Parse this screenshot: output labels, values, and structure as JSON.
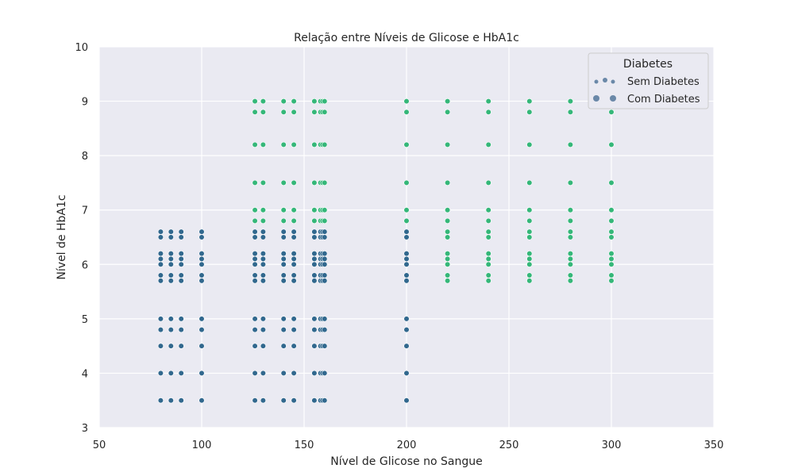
{
  "chart_data": {
    "type": "scatter",
    "title": "Relação entre Níveis de Glicose e HbA1c",
    "xlabel": "Nível de Glicose no Sangue",
    "ylabel": "Nível de HbA1c",
    "xlim": [
      50,
      350
    ],
    "ylim": [
      3,
      10
    ],
    "xticks": [
      50,
      100,
      150,
      200,
      250,
      300,
      350
    ],
    "yticks": [
      3,
      4,
      5,
      6,
      7,
      8,
      9,
      10
    ],
    "grid": true,
    "legend": {
      "title": "Diabetes",
      "placement": "top-right",
      "entries": [
        "Sem Diabetes",
        "Com Diabetes"
      ]
    },
    "colors": {
      "plot_background": "#eaeaf2",
      "grid": "#ffffff",
      "sem_diabetes": "#31688e",
      "com_diabetes": "#35b779",
      "legend_marker": "#6a88a8"
    },
    "series": [
      {
        "name": "Sem Diabetes",
        "points": [
          [
            80,
            3.5
          ],
          [
            80,
            4.0
          ],
          [
            80,
            4.5
          ],
          [
            80,
            4.8
          ],
          [
            80,
            5.0
          ],
          [
            80,
            5.7
          ],
          [
            80,
            5.8
          ],
          [
            80,
            6.0
          ],
          [
            80,
            6.1
          ],
          [
            80,
            6.2
          ],
          [
            80,
            6.5
          ],
          [
            80,
            6.6
          ],
          [
            85,
            3.5
          ],
          [
            85,
            4.0
          ],
          [
            85,
            4.5
          ],
          [
            85,
            4.8
          ],
          [
            85,
            5.0
          ],
          [
            85,
            5.7
          ],
          [
            85,
            5.8
          ],
          [
            85,
            6.0
          ],
          [
            85,
            6.1
          ],
          [
            85,
            6.2
          ],
          [
            85,
            6.5
          ],
          [
            85,
            6.6
          ],
          [
            90,
            3.5
          ],
          [
            90,
            4.0
          ],
          [
            90,
            4.5
          ],
          [
            90,
            4.8
          ],
          [
            90,
            5.0
          ],
          [
            90,
            5.7
          ],
          [
            90,
            5.8
          ],
          [
            90,
            6.0
          ],
          [
            90,
            6.1
          ],
          [
            90,
            6.2
          ],
          [
            90,
            6.5
          ],
          [
            90,
            6.6
          ],
          [
            100,
            3.5
          ],
          [
            100,
            4.0
          ],
          [
            100,
            4.5
          ],
          [
            100,
            4.8
          ],
          [
            100,
            5.0
          ],
          [
            100,
            5.7
          ],
          [
            100,
            5.8
          ],
          [
            100,
            6.0
          ],
          [
            100,
            6.1
          ],
          [
            100,
            6.2
          ],
          [
            100,
            6.5
          ],
          [
            100,
            6.6
          ],
          [
            126,
            3.5
          ],
          [
            126,
            4.0
          ],
          [
            126,
            4.5
          ],
          [
            126,
            4.8
          ],
          [
            126,
            5.0
          ],
          [
            126,
            5.7
          ],
          [
            126,
            5.8
          ],
          [
            126,
            6.0
          ],
          [
            126,
            6.1
          ],
          [
            126,
            6.2
          ],
          [
            126,
            6.5
          ],
          [
            126,
            6.6
          ],
          [
            130,
            3.5
          ],
          [
            130,
            4.0
          ],
          [
            130,
            4.5
          ],
          [
            130,
            4.8
          ],
          [
            130,
            5.0
          ],
          [
            130,
            5.7
          ],
          [
            130,
            5.8
          ],
          [
            130,
            6.0
          ],
          [
            130,
            6.1
          ],
          [
            130,
            6.2
          ],
          [
            130,
            6.5
          ],
          [
            130,
            6.6
          ],
          [
            140,
            3.5
          ],
          [
            140,
            4.0
          ],
          [
            140,
            4.5
          ],
          [
            140,
            4.8
          ],
          [
            140,
            5.0
          ],
          [
            140,
            5.7
          ],
          [
            140,
            5.8
          ],
          [
            140,
            6.0
          ],
          [
            140,
            6.1
          ],
          [
            140,
            6.2
          ],
          [
            140,
            6.5
          ],
          [
            140,
            6.6
          ],
          [
            145,
            3.5
          ],
          [
            145,
            4.0
          ],
          [
            145,
            4.5
          ],
          [
            145,
            4.8
          ],
          [
            145,
            5.0
          ],
          [
            145,
            5.7
          ],
          [
            145,
            5.8
          ],
          [
            145,
            6.0
          ],
          [
            145,
            6.1
          ],
          [
            145,
            6.2
          ],
          [
            145,
            6.5
          ],
          [
            145,
            6.6
          ],
          [
            155,
            3.5
          ],
          [
            155,
            4.0
          ],
          [
            155,
            4.5
          ],
          [
            155,
            4.8
          ],
          [
            155,
            5.0
          ],
          [
            155,
            5.7
          ],
          [
            155,
            5.8
          ],
          [
            155,
            6.0
          ],
          [
            155,
            6.1
          ],
          [
            155,
            6.2
          ],
          [
            155,
            6.5
          ],
          [
            155,
            6.6
          ],
          [
            158,
            3.5
          ],
          [
            158,
            4.0
          ],
          [
            158,
            4.5
          ],
          [
            158,
            4.8
          ],
          [
            158,
            5.0
          ],
          [
            158,
            5.7
          ],
          [
            158,
            5.8
          ],
          [
            158,
            6.0
          ],
          [
            158,
            6.1
          ],
          [
            158,
            6.2
          ],
          [
            158,
            6.5
          ],
          [
            158,
            6.6
          ],
          [
            159,
            3.5
          ],
          [
            159,
            4.0
          ],
          [
            159,
            4.5
          ],
          [
            159,
            4.8
          ],
          [
            159,
            5.0
          ],
          [
            159,
            5.7
          ],
          [
            159,
            5.8
          ],
          [
            159,
            6.0
          ],
          [
            159,
            6.1
          ],
          [
            159,
            6.2
          ],
          [
            159,
            6.5
          ],
          [
            159,
            6.6
          ],
          [
            160,
            3.5
          ],
          [
            160,
            4.0
          ],
          [
            160,
            4.5
          ],
          [
            160,
            4.8
          ],
          [
            160,
            5.0
          ],
          [
            160,
            5.7
          ],
          [
            160,
            5.8
          ],
          [
            160,
            6.0
          ],
          [
            160,
            6.1
          ],
          [
            160,
            6.2
          ],
          [
            160,
            6.5
          ],
          [
            160,
            6.6
          ],
          [
            200,
            3.5
          ],
          [
            200,
            4.0
          ],
          [
            200,
            4.5
          ],
          [
            200,
            4.8
          ],
          [
            200,
            5.0
          ],
          [
            200,
            5.7
          ],
          [
            200,
            5.8
          ],
          [
            200,
            6.0
          ],
          [
            200,
            6.1
          ],
          [
            200,
            6.2
          ],
          [
            200,
            6.5
          ],
          [
            200,
            6.6
          ]
        ]
      },
      {
        "name": "Com Diabetes",
        "points": [
          [
            126,
            6.8
          ],
          [
            126,
            7.0
          ],
          [
            126,
            7.5
          ],
          [
            126,
            8.2
          ],
          [
            126,
            8.8
          ],
          [
            126,
            9.0
          ],
          [
            130,
            6.8
          ],
          [
            130,
            7.0
          ],
          [
            130,
            7.5
          ],
          [
            130,
            8.2
          ],
          [
            130,
            8.8
          ],
          [
            130,
            9.0
          ],
          [
            140,
            6.8
          ],
          [
            140,
            7.0
          ],
          [
            140,
            7.5
          ],
          [
            140,
            8.2
          ],
          [
            140,
            8.8
          ],
          [
            140,
            9.0
          ],
          [
            145,
            6.8
          ],
          [
            145,
            7.0
          ],
          [
            145,
            7.5
          ],
          [
            145,
            8.2
          ],
          [
            145,
            8.8
          ],
          [
            145,
            9.0
          ],
          [
            155,
            6.8
          ],
          [
            155,
            7.0
          ],
          [
            155,
            7.5
          ],
          [
            155,
            8.2
          ],
          [
            155,
            8.8
          ],
          [
            155,
            9.0
          ],
          [
            158,
            6.8
          ],
          [
            158,
            7.0
          ],
          [
            158,
            7.5
          ],
          [
            158,
            8.2
          ],
          [
            158,
            8.8
          ],
          [
            158,
            9.0
          ],
          [
            159,
            6.8
          ],
          [
            159,
            7.0
          ],
          [
            159,
            7.5
          ],
          [
            159,
            8.2
          ],
          [
            159,
            8.8
          ],
          [
            159,
            9.0
          ],
          [
            160,
            6.8
          ],
          [
            160,
            7.0
          ],
          [
            160,
            7.5
          ],
          [
            160,
            8.2
          ],
          [
            160,
            8.8
          ],
          [
            160,
            9.0
          ],
          [
            200,
            6.8
          ],
          [
            200,
            7.0
          ],
          [
            200,
            7.5
          ],
          [
            200,
            8.2
          ],
          [
            200,
            8.8
          ],
          [
            200,
            9.0
          ],
          [
            220,
            5.7
          ],
          [
            220,
            5.8
          ],
          [
            220,
            6.0
          ],
          [
            220,
            6.1
          ],
          [
            220,
            6.2
          ],
          [
            220,
            6.5
          ],
          [
            220,
            6.6
          ],
          [
            220,
            6.8
          ],
          [
            220,
            7.0
          ],
          [
            220,
            7.5
          ],
          [
            220,
            8.2
          ],
          [
            220,
            8.8
          ],
          [
            220,
            9.0
          ],
          [
            240,
            5.7
          ],
          [
            240,
            5.8
          ],
          [
            240,
            6.0
          ],
          [
            240,
            6.1
          ],
          [
            240,
            6.2
          ],
          [
            240,
            6.5
          ],
          [
            240,
            6.6
          ],
          [
            240,
            6.8
          ],
          [
            240,
            7.0
          ],
          [
            240,
            7.5
          ],
          [
            240,
            8.2
          ],
          [
            240,
            8.8
          ],
          [
            240,
            9.0
          ],
          [
            260,
            5.7
          ],
          [
            260,
            5.8
          ],
          [
            260,
            6.0
          ],
          [
            260,
            6.1
          ],
          [
            260,
            6.2
          ],
          [
            260,
            6.5
          ],
          [
            260,
            6.6
          ],
          [
            260,
            6.8
          ],
          [
            260,
            7.0
          ],
          [
            260,
            7.5
          ],
          [
            260,
            8.2
          ],
          [
            260,
            8.8
          ],
          [
            260,
            9.0
          ],
          [
            280,
            5.7
          ],
          [
            280,
            5.8
          ],
          [
            280,
            6.0
          ],
          [
            280,
            6.1
          ],
          [
            280,
            6.2
          ],
          [
            280,
            6.5
          ],
          [
            280,
            6.6
          ],
          [
            280,
            6.8
          ],
          [
            280,
            7.0
          ],
          [
            280,
            7.5
          ],
          [
            280,
            8.2
          ],
          [
            280,
            8.8
          ],
          [
            280,
            9.0
          ],
          [
            300,
            5.7
          ],
          [
            300,
            5.8
          ],
          [
            300,
            6.0
          ],
          [
            300,
            6.1
          ],
          [
            300,
            6.2
          ],
          [
            300,
            6.5
          ],
          [
            300,
            6.6
          ],
          [
            300,
            6.8
          ],
          [
            300,
            7.0
          ],
          [
            300,
            7.5
          ],
          [
            300,
            8.2
          ],
          [
            300,
            8.8
          ]
        ]
      }
    ]
  }
}
